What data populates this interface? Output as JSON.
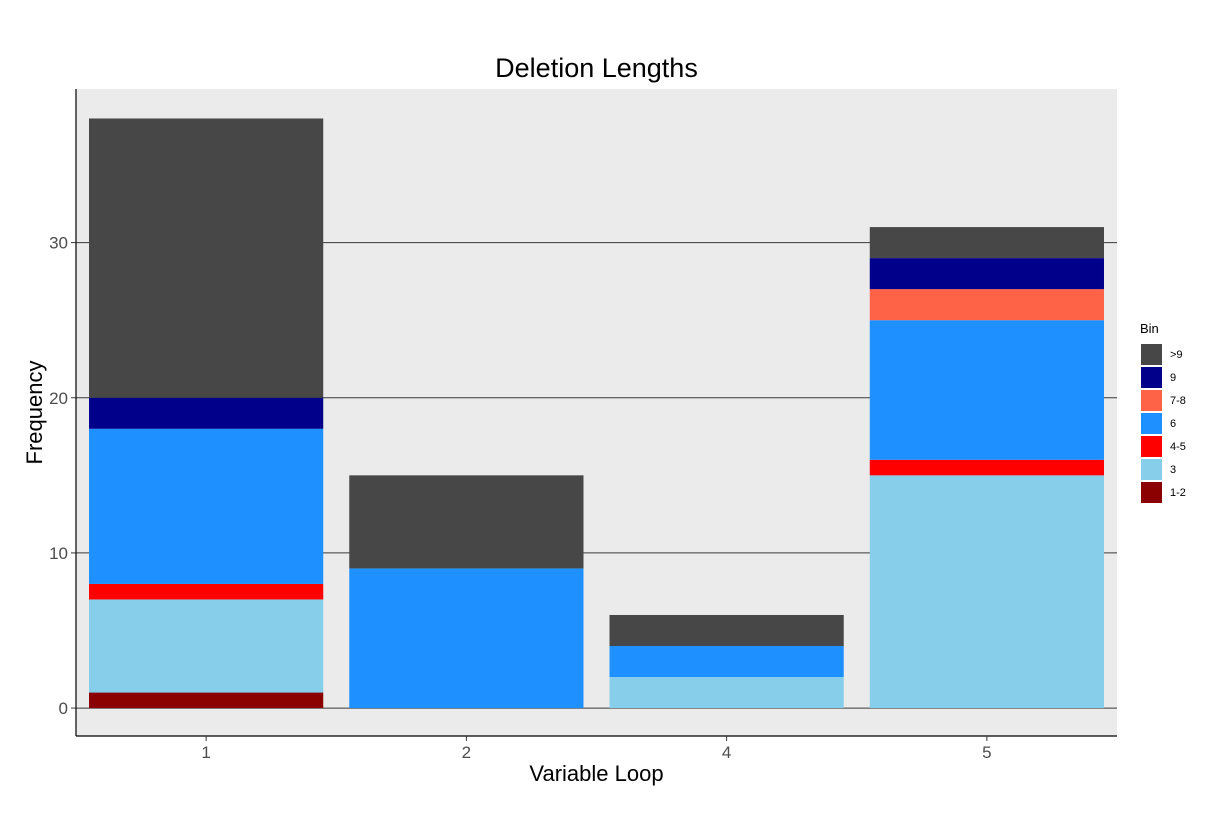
{
  "chart_data": {
    "type": "bar",
    "stacked": true,
    "title": "Deletion Lengths",
    "xlabel": "Variable Loop",
    "ylabel": "Frequency",
    "categories": [
      "1",
      "2",
      "4",
      "5"
    ],
    "ylim": [
      -1.8,
      39.9
    ],
    "yticks": [
      0,
      10,
      20,
      30
    ],
    "grid": "horizontal major lines",
    "legend": {
      "title": "Bin",
      "position": "right"
    },
    "series": [
      {
        "name": "1-2",
        "color": "#8B0000",
        "values": [
          1,
          0,
          0,
          0
        ]
      },
      {
        "name": "3",
        "color": "#87CEEB",
        "values": [
          6,
          0,
          2,
          15
        ]
      },
      {
        "name": "4-5",
        "color": "#FF0000",
        "values": [
          1,
          0,
          0,
          1
        ]
      },
      {
        "name": "6",
        "color": "#1E90FF",
        "values": [
          10,
          9,
          2,
          9
        ]
      },
      {
        "name": "7-8",
        "color": "#FF6347",
        "values": [
          0,
          0,
          0,
          2
        ]
      },
      {
        "name": "9",
        "color": "#00008B",
        "values": [
          2,
          0,
          0,
          2
        ]
      },
      {
        "name": ">9",
        "color": "#474747",
        "values": [
          18,
          6,
          2,
          2
        ]
      }
    ],
    "legend_order": [
      ">9",
      "9",
      "7-8",
      "6",
      "4-5",
      "3",
      "1-2"
    ],
    "panel_background": "#EBEBEB"
  }
}
